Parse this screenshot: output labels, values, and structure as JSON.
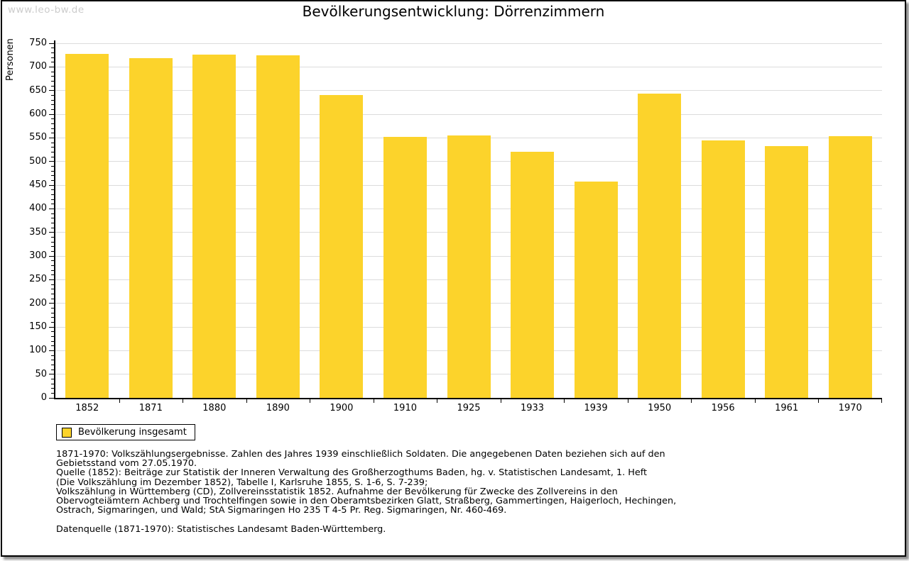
{
  "watermark": "www.leo-bw.de",
  "title": "Bevölkerungsentwicklung: Dörrenzimmern",
  "chart_data": {
    "type": "bar",
    "title": "Bevölkerungsentwicklung: Dörrenzimmern",
    "xlabel": "",
    "ylabel": "Personen",
    "ylim": [
      0,
      750
    ],
    "ytick_step": 50,
    "minor_tick_step": 10,
    "grid": true,
    "legend_position": "bottom-left",
    "categories": [
      "1852",
      "1871",
      "1880",
      "1890",
      "1900",
      "1910",
      "1925",
      "1933",
      "1939",
      "1950",
      "1956",
      "1961",
      "1970"
    ],
    "series": [
      {
        "name": "Bevölkerung insgesamt",
        "values": [
          728,
          719,
          726,
          725,
          640,
          552,
          555,
          520,
          457,
          644,
          544,
          533,
          554
        ]
      }
    ],
    "bar_color": "#FCD32B",
    "grid_color": "#dcdcdc",
    "axis_color": "#000000"
  },
  "legend": {
    "label": "Bevölkerung insgesamt",
    "swatch_color": "#FCD32B"
  },
  "footer": {
    "lines": [
      "1871-1970: Volkszählungsergebnisse. Zahlen des Jahres 1939 einschließlich Soldaten. Die angegebenen Daten beziehen sich auf den",
      "Gebietsstand vom 27.05.1970.",
      "Quelle (1852): Beiträge zur Statistik der Inneren Verwaltung des Großherzogthums Baden, hg. v. Statistischen Landesamt, 1. Heft",
      "(Die Volkszählung im Dezember 1852), Tabelle I, Karlsruhe 1855, S. 1-6, S. 7-239;",
      "Volkszählung in Württemberg (CD), Zollvereinsstatistik 1852. Aufnahme der Bevölkerung für Zwecke des Zollvereins in den",
      "Obervogteiämtern Achberg und Trochtelfingen sowie in den Oberamtsbezirken Glatt, Straßberg, Gammertingen, Haigerloch, Hechingen,",
      "Ostrach, Sigmaringen, und Wald; StA Sigmaringen Ho 235 T 4-5 Pr. Reg. Sigmaringen, Nr. 460-469."
    ],
    "datasource": "Datenquelle (1871-1970): Statistisches Landesamt Baden-Württemberg."
  }
}
